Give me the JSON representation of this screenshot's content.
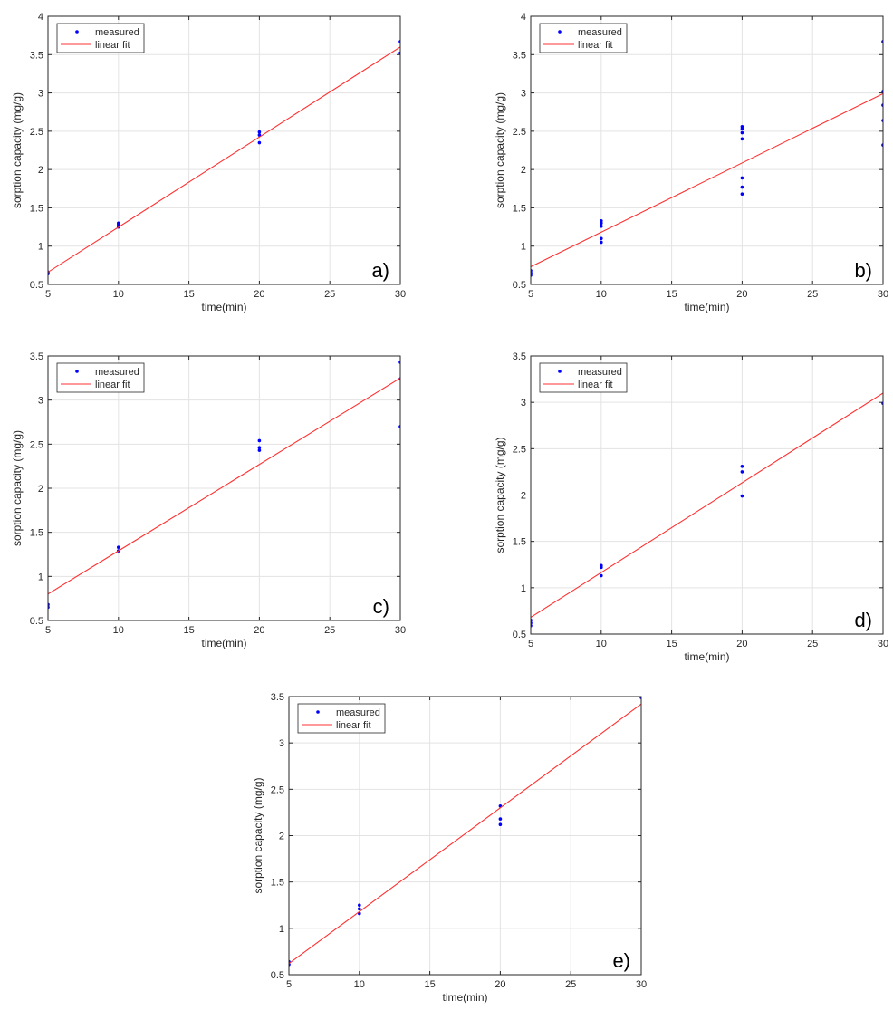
{
  "colors": {
    "measured": "#0000ff",
    "fit": "#ff3030",
    "grid": "#e3e3e3",
    "axis": "#262626"
  },
  "chart_data": [
    {
      "type": "scatter",
      "panel_label": "a)",
      "xlabel": "time(min)",
      "ylabel": "sorption capacity (mg/g)",
      "xlim": [
        5,
        30
      ],
      "ylim": [
        0.5,
        4
      ],
      "xticks": [
        5,
        10,
        15,
        20,
        25,
        30
      ],
      "yticks": [
        0.5,
        1,
        1.5,
        2,
        2.5,
        3,
        3.5,
        4
      ],
      "grid": true,
      "legend": "top-left",
      "series": [
        {
          "name": "measured",
          "kind": "points",
          "x": [
            5,
            5,
            10,
            10,
            10,
            20,
            20,
            20,
            30,
            30
          ],
          "y": [
            0.64,
            0.66,
            1.25,
            1.28,
            1.3,
            2.35,
            2.45,
            2.49,
            3.52,
            3.67
          ]
        },
        {
          "name": "linear fit",
          "kind": "line",
          "x": [
            5,
            30
          ],
          "y": [
            0.66,
            3.6
          ]
        }
      ]
    },
    {
      "type": "scatter",
      "panel_label": "b)",
      "xlabel": "time(min)",
      "ylabel": "sorption capacity (mg/g)",
      "xlim": [
        5,
        30
      ],
      "ylim": [
        0.5,
        4
      ],
      "xticks": [
        5,
        10,
        15,
        20,
        25,
        30
      ],
      "yticks": [
        0.5,
        1,
        1.5,
        2,
        2.5,
        3,
        3.5,
        4
      ],
      "grid": true,
      "legend": "top-left",
      "series": [
        {
          "name": "measured",
          "kind": "points",
          "x": [
            5,
            5,
            5,
            10,
            10,
            10,
            10,
            10,
            20,
            20,
            20,
            20,
            20,
            20,
            20,
            30,
            30,
            30,
            30,
            30
          ],
          "y": [
            0.62,
            0.65,
            0.68,
            1.05,
            1.1,
            1.26,
            1.3,
            1.33,
            1.68,
            1.77,
            1.89,
            2.4,
            2.48,
            2.53,
            2.56,
            2.32,
            2.64,
            2.84,
            3.02,
            3.67
          ]
        },
        {
          "name": "linear fit",
          "kind": "line",
          "x": [
            5,
            30
          ],
          "y": [
            0.73,
            2.99
          ]
        }
      ]
    },
    {
      "type": "scatter",
      "panel_label": "c)",
      "xlabel": "time(min)",
      "ylabel": "sorption capacity (mg/g)",
      "xlim": [
        5,
        30
      ],
      "ylim": [
        0.5,
        3.5
      ],
      "xticks": [
        5,
        10,
        15,
        20,
        25,
        30
      ],
      "yticks": [
        0.5,
        1,
        1.5,
        2,
        2.5,
        3,
        3.5
      ],
      "grid": true,
      "legend": "top-left",
      "series": [
        {
          "name": "measured",
          "kind": "points",
          "x": [
            5,
            5,
            10,
            10,
            20,
            20,
            20,
            30,
            30,
            30
          ],
          "y": [
            0.65,
            0.68,
            1.29,
            1.33,
            2.43,
            2.46,
            2.54,
            2.7,
            3.24,
            3.43
          ]
        },
        {
          "name": "linear fit",
          "kind": "line",
          "x": [
            5,
            30
          ],
          "y": [
            0.8,
            3.25
          ]
        }
      ]
    },
    {
      "type": "scatter",
      "panel_label": "d)",
      "xlabel": "time(min)",
      "ylabel": "sorption capacity (mg/g)",
      "xlim": [
        5,
        30
      ],
      "ylim": [
        0.5,
        3.5
      ],
      "xticks": [
        5,
        10,
        15,
        20,
        25,
        30
      ],
      "yticks": [
        0.5,
        1,
        1.5,
        2,
        2.5,
        3,
        3.5
      ],
      "grid": true,
      "legend": "top-left",
      "series": [
        {
          "name": "measured",
          "kind": "points",
          "x": [
            5,
            5,
            5,
            10,
            10,
            10,
            20,
            20,
            20,
            30
          ],
          "y": [
            0.59,
            0.62,
            0.65,
            1.13,
            1.22,
            1.24,
            1.99,
            2.25,
            2.31,
            2.99
          ]
        },
        {
          "name": "linear fit",
          "kind": "line",
          "x": [
            5,
            30
          ],
          "y": [
            0.68,
            3.1
          ]
        }
      ]
    },
    {
      "type": "scatter",
      "panel_label": "e)",
      "xlabel": "time(min)",
      "ylabel": "sorption capacity (mg/g)",
      "xlim": [
        5,
        30
      ],
      "ylim": [
        0.5,
        3.5
      ],
      "xticks": [
        5,
        10,
        15,
        20,
        25,
        30
      ],
      "yticks": [
        0.5,
        1,
        1.5,
        2,
        2.5,
        3,
        3.5
      ],
      "grid": true,
      "legend": "top-left",
      "series": [
        {
          "name": "measured",
          "kind": "points",
          "x": [
            5,
            5,
            10,
            10,
            10,
            20,
            20,
            20,
            30
          ],
          "y": [
            0.61,
            0.64,
            1.16,
            1.21,
            1.25,
            2.12,
            2.18,
            2.32,
            3.49
          ]
        },
        {
          "name": "linear fit",
          "kind": "line",
          "x": [
            5,
            30
          ],
          "y": [
            0.62,
            3.42
          ]
        }
      ]
    }
  ]
}
